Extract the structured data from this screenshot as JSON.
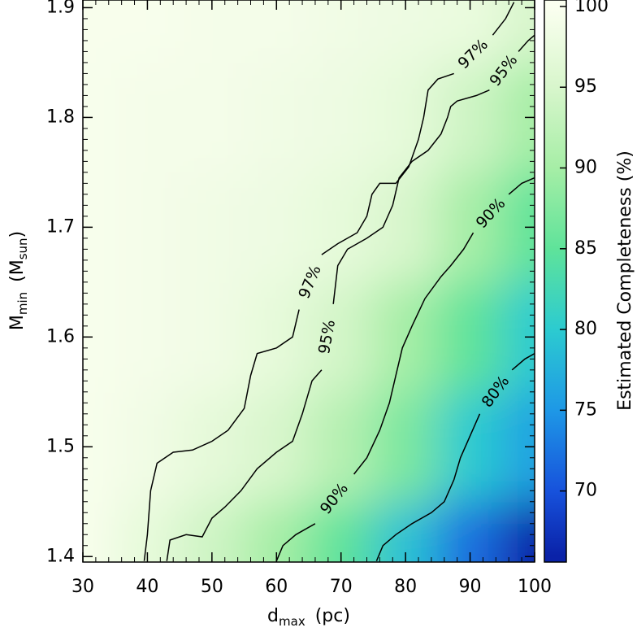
{
  "chart_data": {
    "type": "contour",
    "xlabel": {
      "base": "d",
      "sub": "max",
      "rest": "(pc)"
    },
    "ylabel": {
      "base": "M",
      "sub": "min",
      "rest": "(M",
      "rest_sub": "sun",
      "close": ")"
    },
    "colorbar_label": "Estimated Completeness (%)",
    "xlim": [
      30,
      100
    ],
    "ylim": [
      1.395,
      1.907
    ],
    "xticks": [
      30,
      40,
      50,
      60,
      70,
      80,
      90,
      100
    ],
    "yticks": [
      1.4,
      1.5,
      1.6,
      1.7,
      1.8,
      1.9
    ],
    "xminor": 2,
    "yminor": 0.01,
    "clim": [
      65.6,
      100.4
    ],
    "cticks": [
      70,
      75,
      80,
      85,
      90,
      95,
      100
    ],
    "colormap": [
      {
        "value": 66,
        "color": "#0a22a8"
      },
      {
        "value": 70,
        "color": "#1752dc"
      },
      {
        "value": 75,
        "color": "#1e98e6"
      },
      {
        "value": 80,
        "color": "#2ccbd0"
      },
      {
        "value": 85,
        "color": "#5fe39a"
      },
      {
        "value": 90,
        "color": "#a6eea6"
      },
      {
        "value": 95,
        "color": "#d8f6cc"
      },
      {
        "value": 100,
        "color": "#fbfff0"
      }
    ],
    "grid_x": [
      30,
      40,
      50,
      60,
      70,
      80,
      90,
      100
    ],
    "grid_y": [
      1.4,
      1.5,
      1.6,
      1.7,
      1.8,
      1.9
    ],
    "z": [
      [
        99.5,
        97,
        94,
        90,
        85,
        79,
        72,
        66
      ],
      [
        99.5,
        98.5,
        96.8,
        95,
        91.5,
        87,
        80,
        76
      ],
      [
        99.5,
        99,
        98.5,
        97,
        94.5,
        90,
        85,
        80
      ],
      [
        99.5,
        99,
        98.5,
        98,
        97,
        95,
        90,
        85
      ],
      [
        99.5,
        99,
        99,
        98.5,
        98,
        97,
        94,
        90
      ],
      [
        99.5,
        99.5,
        99,
        99,
        98.5,
        98,
        97.5,
        95
      ]
    ],
    "contours": [
      {
        "level": 97,
        "label": "97%",
        "x": [
          39.5,
          40,
          40.5,
          41.5,
          44,
          47,
          50,
          52.5,
          55,
          56,
          57,
          60,
          62.5,
          63.5,
          null,
          67,
          69.5,
          72.5,
          74,
          74.8,
          76,
          78.5,
          80.5,
          82,
          82.8,
          83.5,
          85,
          87.5,
          null,
          93.5,
          95.5,
          96.8
        ],
        "y": [
          1.396,
          1.42,
          1.46,
          1.485,
          1.495,
          1.497,
          1.505,
          1.515,
          1.535,
          1.565,
          1.585,
          1.59,
          1.6,
          1.625,
          null,
          1.675,
          1.685,
          1.695,
          1.71,
          1.73,
          1.74,
          1.74,
          1.755,
          1.78,
          1.8,
          1.825,
          1.835,
          1.84,
          null,
          1.875,
          1.89,
          1.905
        ]
      },
      {
        "level": 95,
        "label": "95%",
        "x": [
          43,
          43.5,
          46,
          48.5,
          50,
          52,
          54.5,
          57,
          60,
          62.5,
          64,
          65.5,
          67,
          null,
          68.8,
          69.5,
          71,
          74,
          76.5,
          78,
          79,
          81,
          83.5,
          85.5,
          86.5,
          87,
          88,
          91,
          93,
          null,
          97.5,
          99,
          100
        ],
        "y": [
          1.396,
          1.415,
          1.42,
          1.418,
          1.435,
          1.445,
          1.46,
          1.48,
          1.495,
          1.505,
          1.53,
          1.56,
          1.57,
          null,
          1.63,
          1.665,
          1.68,
          1.69,
          1.7,
          1.72,
          1.745,
          1.76,
          1.77,
          1.785,
          1.8,
          1.81,
          1.815,
          1.82,
          1.825,
          null,
          1.86,
          1.87,
          1.875
        ]
      },
      {
        "level": 90,
        "label": "90%",
        "x": [
          60,
          61,
          63,
          66,
          null,
          72,
          74,
          76,
          77.5,
          78.5,
          79.5,
          81,
          83,
          85.5,
          87,
          89,
          90.5,
          null,
          96,
          98,
          100
        ],
        "y": [
          1.396,
          1.41,
          1.42,
          1.43,
          null,
          1.475,
          1.49,
          1.515,
          1.54,
          1.565,
          1.59,
          1.61,
          1.635,
          1.655,
          1.665,
          1.68,
          1.695,
          null,
          1.73,
          1.74,
          1.745
        ]
      },
      {
        "level": 80,
        "label": "80%",
        "x": [
          75.5,
          76.5,
          78.5,
          81,
          84,
          86,
          87.5,
          88.5,
          90,
          91.5,
          null,
          96.5,
          98.5,
          100
        ],
        "y": [
          1.396,
          1.41,
          1.42,
          1.43,
          1.44,
          1.45,
          1.47,
          1.49,
          1.51,
          1.53,
          null,
          1.57,
          1.58,
          1.585
        ]
      }
    ]
  }
}
